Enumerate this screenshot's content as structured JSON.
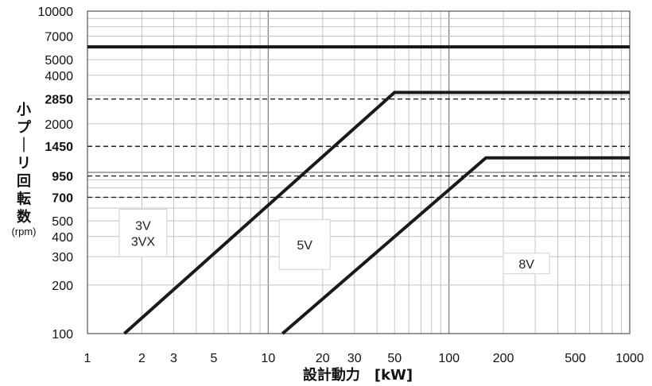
{
  "chart_data": {
    "type": "line",
    "x_scale": "log",
    "y_scale": "log",
    "xlim": [
      1,
      1000
    ],
    "ylim": [
      100,
      10000
    ],
    "xlabel": "設計動力　[kW]",
    "ylabel": "小プーリ回転数",
    "ylabel_unit": "(rpm)",
    "x_ticks": [
      {
        "value": 1,
        "label": "1"
      },
      {
        "value": 2,
        "label": "2"
      },
      {
        "value": 3,
        "label": "3"
      },
      {
        "value": 5,
        "label": "5"
      },
      {
        "value": 10,
        "label": "10"
      },
      {
        "value": 20,
        "label": "20"
      },
      {
        "value": 30,
        "label": "30"
      },
      {
        "value": 50,
        "label": "50"
      },
      {
        "value": 100,
        "label": "100"
      },
      {
        "value": 200,
        "label": "200"
      },
      {
        "value": 500,
        "label": "500"
      },
      {
        "value": 1000,
        "label": "1000"
      }
    ],
    "y_ticks": [
      {
        "value": 100,
        "label": "100",
        "bold": false
      },
      {
        "value": 200,
        "label": "200",
        "bold": false
      },
      {
        "value": 300,
        "label": "300",
        "bold": false
      },
      {
        "value": 400,
        "label": "400",
        "bold": false
      },
      {
        "value": 500,
        "label": "500",
        "bold": false
      },
      {
        "value": 700,
        "label": "700",
        "bold": true
      },
      {
        "value": 950,
        "label": "950",
        "bold": true
      },
      {
        "value": 1450,
        "label": "1450",
        "bold": true
      },
      {
        "value": 2000,
        "label": "2000",
        "bold": false
      },
      {
        "value": 2850,
        "label": "2850",
        "bold": true
      },
      {
        "value": 4000,
        "label": "4000",
        "bold": false
      },
      {
        "value": 5000,
        "label": "5000",
        "bold": false
      },
      {
        "value": 7000,
        "label": "7000",
        "bold": false
      },
      {
        "value": 10000,
        "label": "10000",
        "bold": false
      }
    ],
    "grid": true,
    "reference_lines": [
      2850,
      1450,
      950,
      700
    ],
    "series": [
      {
        "x": [
          1,
          1000
        ],
        "y": [
          6000,
          6000
        ]
      },
      {
        "x": [
          1.6,
          50,
          1000
        ],
        "y": [
          100,
          3130,
          3130
        ]
      },
      {
        "x": [
          12,
          160,
          1000
        ],
        "y": [
          100,
          1230,
          1230
        ]
      }
    ],
    "region_labels": [
      {
        "lines": [
          "3V",
          "3VX"
        ],
        "x": [
          1.5,
          2.75
        ],
        "y": [
          300,
          590
        ]
      },
      {
        "lines": [
          "5V"
        ],
        "x": [
          11.5,
          22
        ],
        "y": [
          250,
          510
        ]
      },
      {
        "lines": [
          "8V"
        ],
        "x": [
          200,
          360
        ],
        "y": [
          235,
          315
        ]
      }
    ]
  }
}
